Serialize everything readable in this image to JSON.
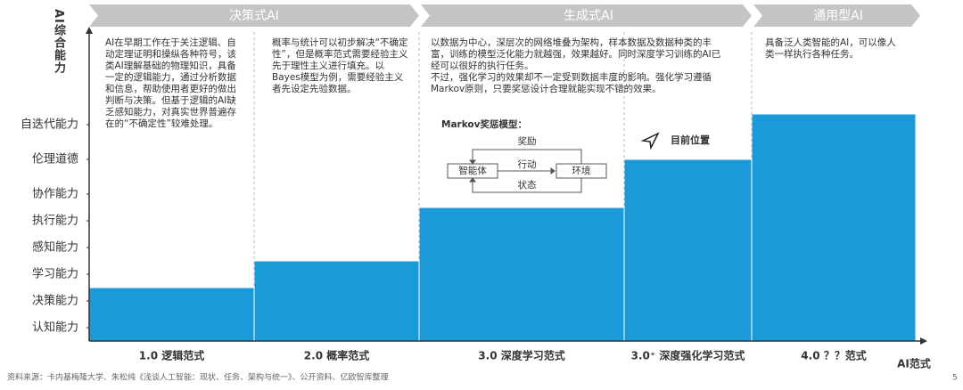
{
  "chart_data": {
    "type": "bar",
    "y_label": "AI综合能力",
    "x_label": "AI范式",
    "phases": [
      "决策式AI",
      "生成式AI",
      "通用型AI"
    ],
    "categories": [
      "1.0 逻辑范式",
      "2.0 概率范式",
      "3.0 深度学习范式",
      "3.0⁺ 深度强化学习范式",
      "4.0 ？？范式"
    ],
    "values": [
      2,
      3,
      5,
      6.8,
      8.5
    ],
    "color": "#1a9ad9",
    "ylim": [
      0,
      11.5
    ],
    "yticks": [
      {
        "value": 0.5,
        "label": "认知能力"
      },
      {
        "value": 1.5,
        "label": "决策能力"
      },
      {
        "value": 2.5,
        "label": "学习能力"
      },
      {
        "value": 3.5,
        "label": "感知能力"
      },
      {
        "value": 4.5,
        "label": "执行能力"
      },
      {
        "value": 5.5,
        "label": "协作能力"
      },
      {
        "value": 6.8,
        "label": "伦理道德"
      },
      {
        "value": 8.1,
        "label": "自迭代能力"
      }
    ],
    "descriptions": [
      [
        "AI在早期工作在于关注逻辑、自动定理证明和操纵各种符号，该类AI理解基础的物理知识，具备一定的逻辑能力，通过分析数据和信息，帮助使用者更好的做出判断与决策。但基于逻辑的AI缺乏感知能力，对真实世界普遍存在的“不确定性”较难处理。"
      ],
      [
        "概率与统计可以初步解决“不确定性”，但是概率范式需要经验主义先于理性主义进行填充。以Bayes模型为例，需要经验主义者先设定先验数据。"
      ],
      [
        "以数据为中心，深层次的网络堆叠为架构，样本数据及数据种类的丰富，训练的模型泛化能力就越强，效果越好。同时深度学习训练的AI已经可以很好的执行任务。",
        "不过，强化学习的效果却不一定受到数据丰度的影响。强化学习遵循Markov原则，只要奖惩设计合理就能实现不错的效果。"
      ],
      [
        "具备泛人类智能的AI，可以像人类一样执行各种任务。"
      ]
    ],
    "markov": {
      "title": "Markov奖惩模型：",
      "agent": "智能体",
      "environment": "环境",
      "reward": "奖励",
      "action": "行动",
      "state": "状态"
    },
    "current_position": "目前位置",
    "source": "资料来源：卡内基梅隆大学、朱松纯《浅谈人工智能：现状、任务、架构与统一》、公开资料、亿欧智库整理",
    "page_number": "5"
  }
}
